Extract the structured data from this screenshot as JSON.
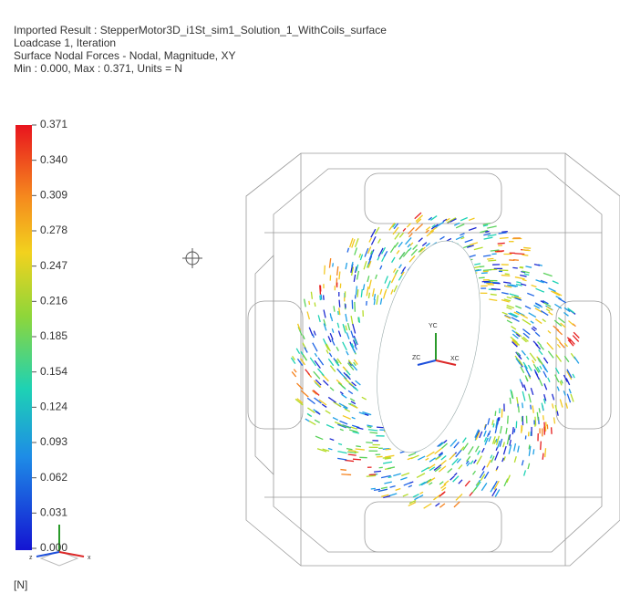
{
  "header": {
    "lines": [
      "Imported Result : StepperMotor3D_i1St_sim1_Solution_1_WithCoils_surface",
      "Loadcase 1, Iteration",
      "Surface Nodal Forces - Nodal, Magnitude, XY",
      "Min : 0.000, Max : 0.371, Units = N"
    ]
  },
  "legend": {
    "labels": [
      "0.371",
      "0.340",
      "0.309",
      "0.278",
      "0.247",
      "0.216",
      "0.185",
      "0.154",
      "0.124",
      "0.093",
      "0.062",
      "0.031",
      "0.000"
    ],
    "units": "[N]"
  },
  "triads": {
    "model": [
      "YC",
      "ZC",
      "XC"
    ],
    "view": [
      "z",
      "x"
    ]
  }
}
